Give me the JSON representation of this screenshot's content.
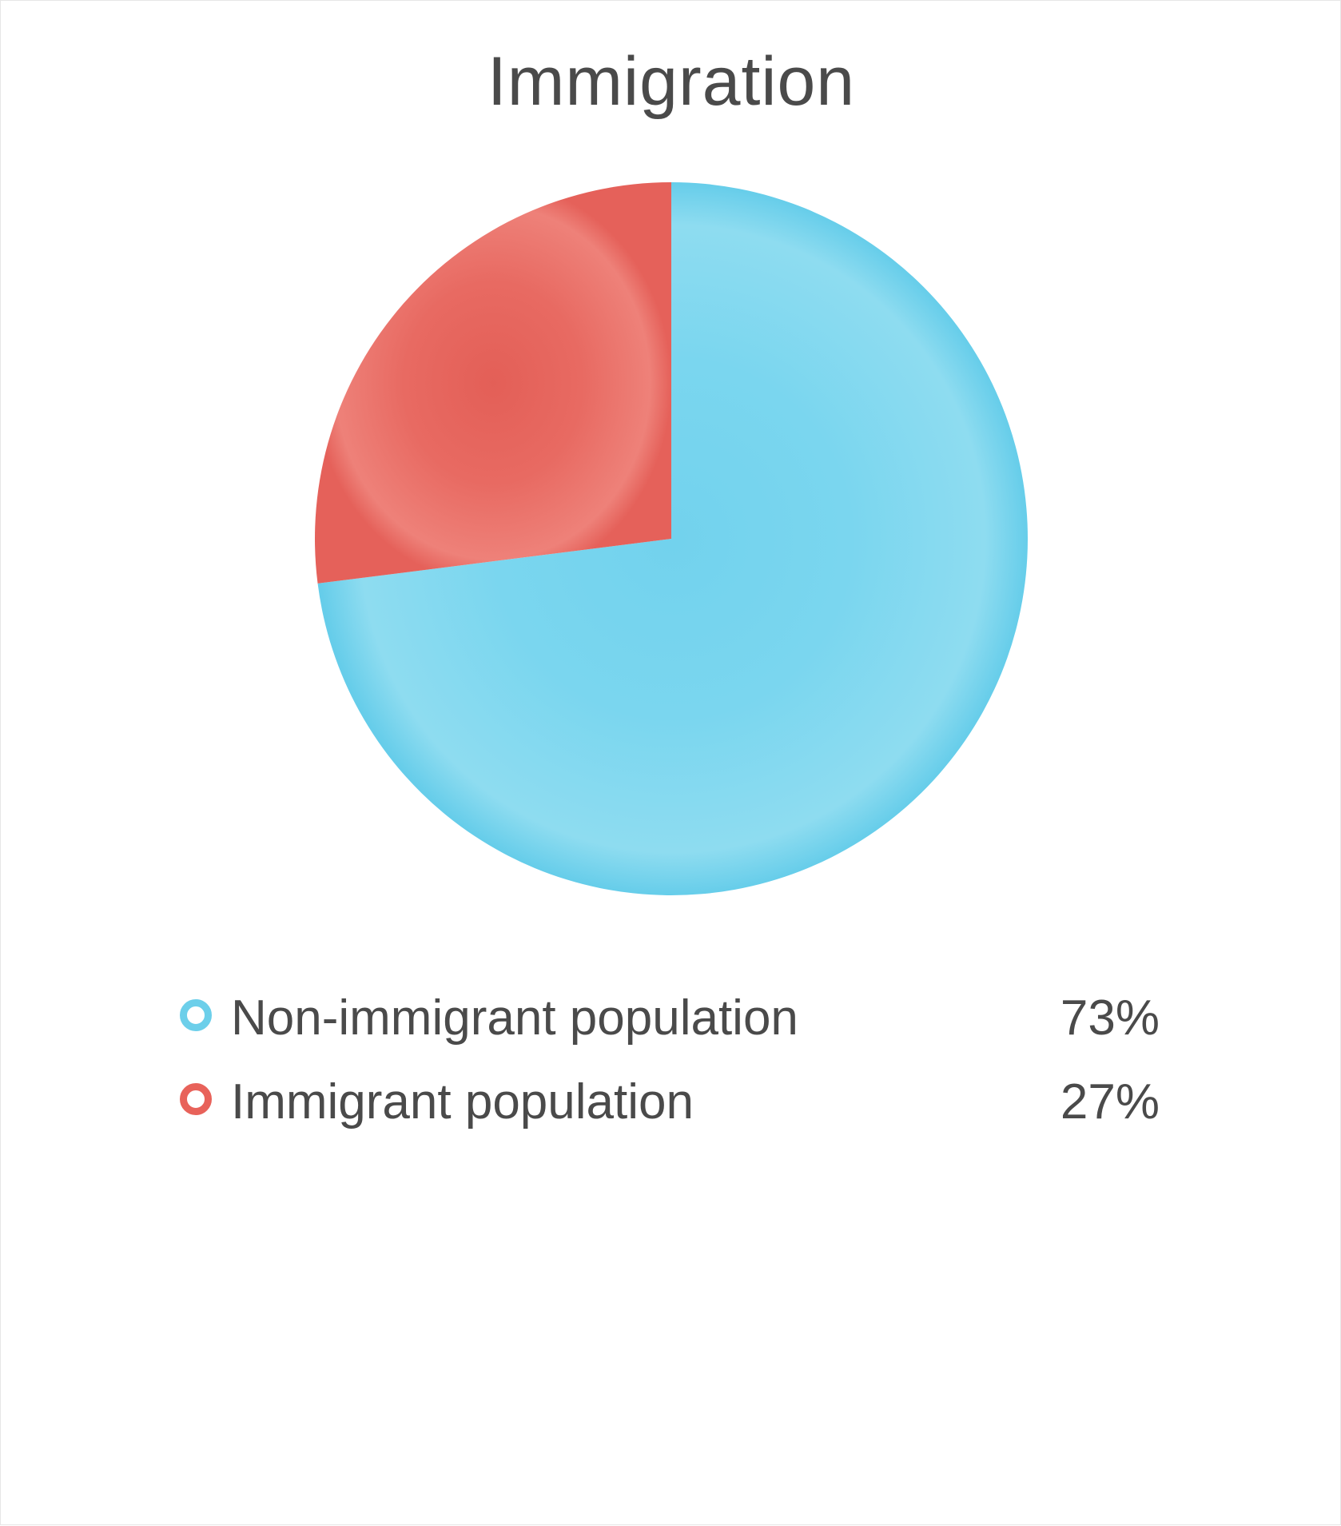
{
  "chart_data": {
    "type": "pie",
    "title": "Immigration",
    "slices": [
      {
        "label": "Non-immigrant population",
        "value": 73,
        "display": "73%",
        "color": "#6ccfea"
      },
      {
        "label": "Immigrant population",
        "value": 27,
        "display": "27%",
        "color": "#e8625a"
      }
    ],
    "legend_position": "bottom"
  }
}
